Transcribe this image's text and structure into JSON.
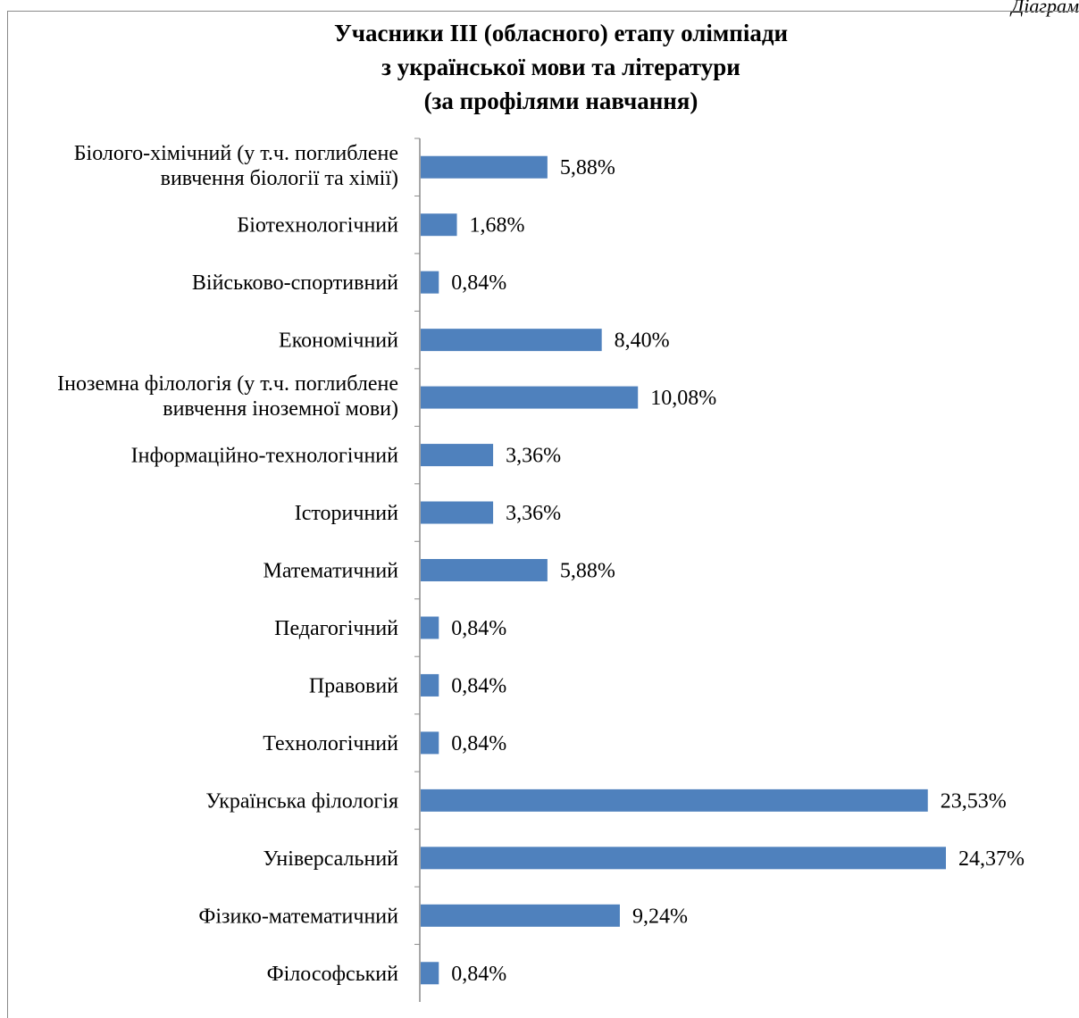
{
  "page": {
    "corner_label": "Діаграм"
  },
  "chart_data": {
    "type": "bar",
    "orientation": "horizontal",
    "title_lines": [
      "Учасники ІІІ (обласного) етапу олімпіади",
      "з української мови та літератури",
      "(за профілями навчання)"
    ],
    "categories": [
      [
        "Біолого-хімічний (у т.ч. поглиблене",
        "вивчення біології та хімії)"
      ],
      [
        "Біотехнологічний"
      ],
      [
        "Військово-спортивний"
      ],
      [
        "Економічний"
      ],
      [
        "Іноземна філологія (у т.ч. поглиблене",
        "вивчення іноземної мови)"
      ],
      [
        "Інформаційно-технологічний"
      ],
      [
        "Історичний"
      ],
      [
        "Математичний"
      ],
      [
        "Педагогічний"
      ],
      [
        "Правовий"
      ],
      [
        "Технологічний"
      ],
      [
        "Українська філологія"
      ],
      [
        "Універсальний"
      ],
      [
        "Фізико-математичний"
      ],
      [
        "Філософський"
      ]
    ],
    "values": [
      5.88,
      1.68,
      0.84,
      8.4,
      10.08,
      3.36,
      3.36,
      5.88,
      0.84,
      0.84,
      0.84,
      23.53,
      24.37,
      9.24,
      0.84
    ],
    "data_labels": [
      "5,88%",
      "1,68%",
      "0,84%",
      "8,40%",
      "10,08%",
      "3,36%",
      "3,36%",
      "5,88%",
      "0,84%",
      "0,84%",
      "0,84%",
      "23,53%",
      "24,37%",
      "9,24%",
      "0,84%"
    ],
    "xlim": [
      0,
      30
    ],
    "grid": false,
    "legend": "none",
    "bar_color": "#4f81bd"
  }
}
